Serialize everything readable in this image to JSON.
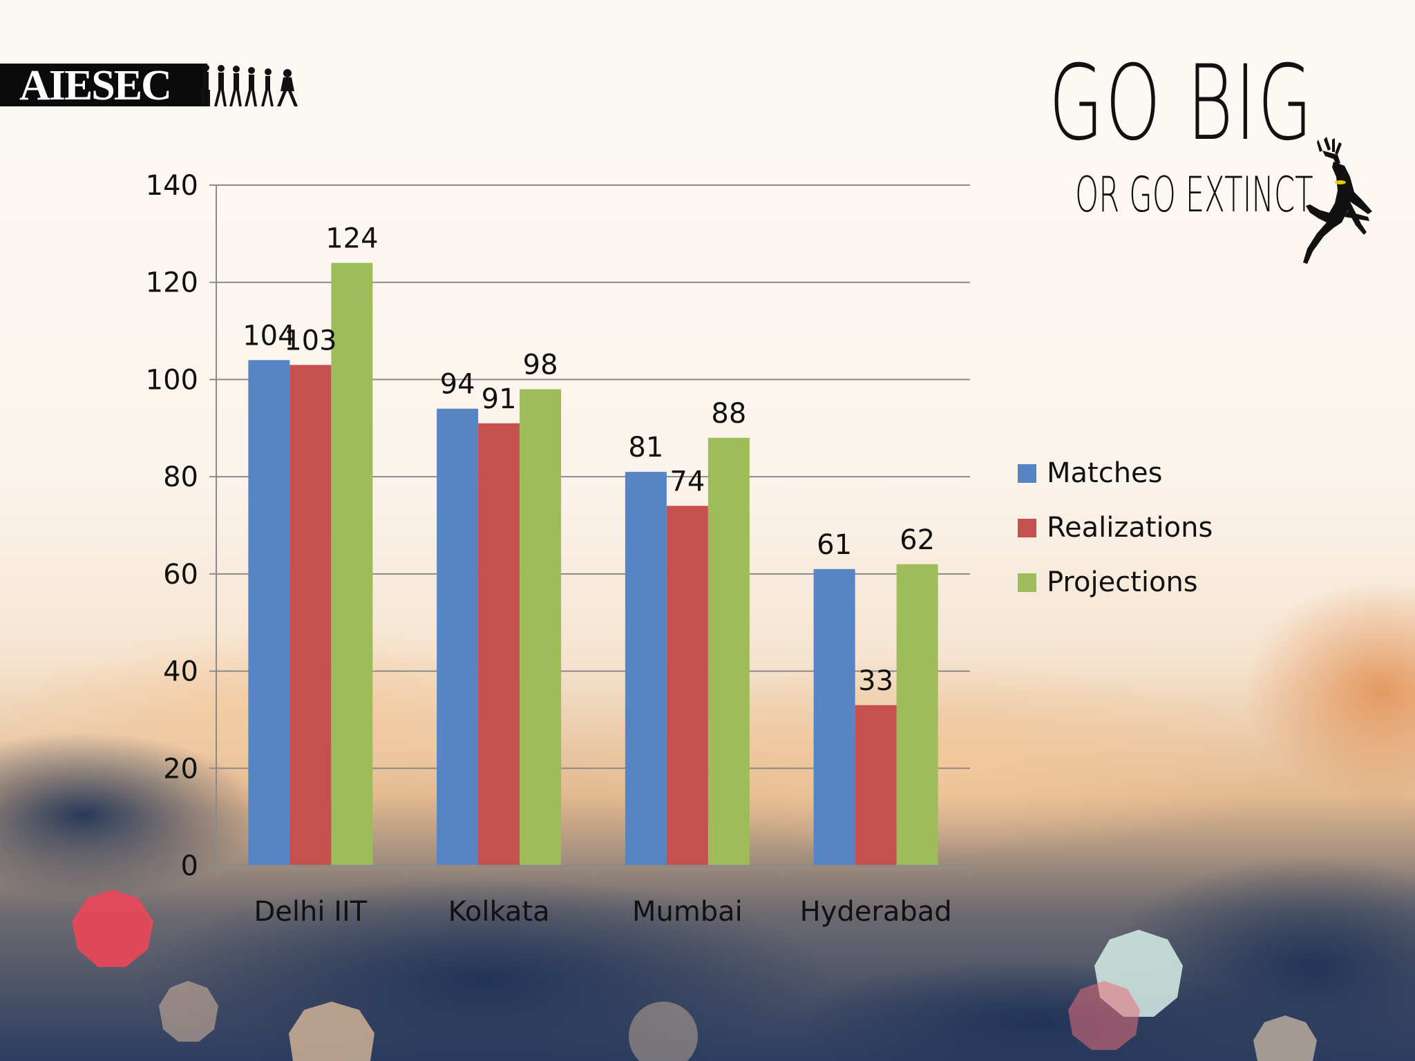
{
  "branding": {
    "logo_text": "AIESEC",
    "slogan_line1": "GO BIG",
    "slogan_line2": "OR  GO EXTINCT"
  },
  "colors": {
    "matches": "#5585c5",
    "realizations": "#c5504e",
    "projections": "#9ebd5a",
    "grid": "#8a8a8a",
    "text": "#111111"
  },
  "chart_data": {
    "type": "bar",
    "title": "",
    "xlabel": "",
    "ylabel": "",
    "categories": [
      "Delhi IIT",
      "Kolkata",
      "Mumbai",
      "Hyderabad"
    ],
    "series": [
      {
        "name": "Matches",
        "values": [
          104,
          94,
          81,
          61
        ]
      },
      {
        "name": "Realizations",
        "values": [
          103,
          91,
          74,
          33
        ]
      },
      {
        "name": "Projections",
        "values": [
          124,
          98,
          88,
          62
        ]
      }
    ],
    "ylim": [
      0,
      140
    ],
    "yticks": [
      0,
      20,
      40,
      60,
      80,
      100,
      120,
      140
    ],
    "grid": true,
    "legend": "right",
    "data_labels": true
  }
}
